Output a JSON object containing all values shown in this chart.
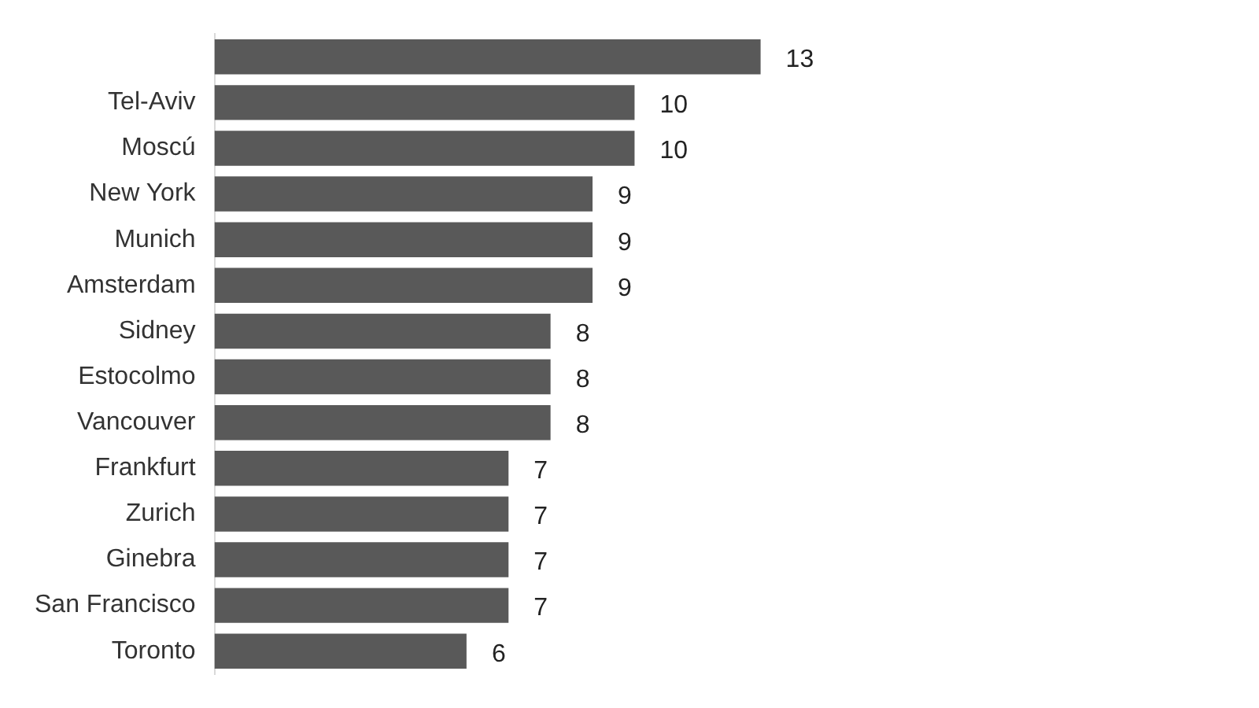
{
  "chart_data": {
    "type": "bar",
    "orientation": "horizontal",
    "categories": [
      null,
      "Tel-Aviv",
      "Moscú",
      "New York",
      "Munich",
      "Amsterdam",
      "Sidney",
      "Estocolmo",
      "Vancouver",
      "Frankfurt",
      "Zurich",
      "Ginebra",
      "San Francisco",
      "Toronto"
    ],
    "values": [
      13,
      10,
      10,
      9,
      9,
      9,
      8,
      8,
      8,
      7,
      7,
      7,
      7,
      6
    ],
    "color": "#595959",
    "data_labels": true
  }
}
